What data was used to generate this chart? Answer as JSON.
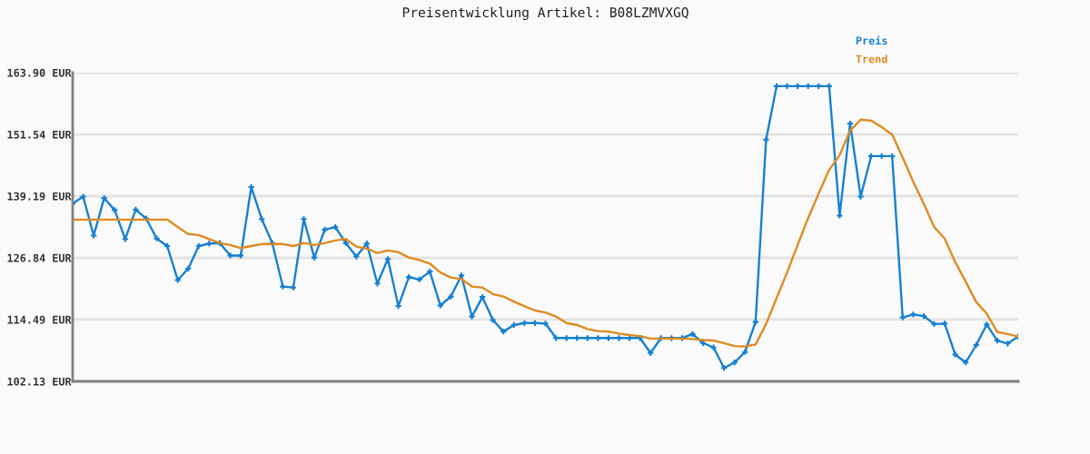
{
  "chart_data": {
    "type": "line",
    "title": "Preisentwicklung Artikel: B08LZMVXGQ",
    "categories": [
      null,
      null,
      null,
      null,
      null,
      null,
      null,
      null,
      null,
      null,
      null,
      null,
      null,
      null,
      null,
      null,
      null,
      null,
      null,
      null,
      null,
      null,
      null,
      null,
      null,
      null,
      null,
      null,
      null,
      null,
      null,
      null,
      null,
      null,
      null,
      null,
      null,
      null,
      null,
      null,
      null,
      null,
      null,
      null,
      null,
      null,
      null,
      null,
      null,
      null,
      null,
      null,
      null,
      null,
      null,
      null,
      null,
      null,
      null,
      null,
      null,
      null,
      null,
      null,
      null,
      null,
      null,
      null,
      null,
      null,
      null,
      null,
      null,
      null,
      null,
      null,
      null,
      null,
      null,
      null,
      null,
      null,
      null,
      null,
      null,
      null,
      null,
      null,
      null,
      null,
      null
    ],
    "series": [
      {
        "name": "Preis",
        "color": "#1580d0",
        "values": [
          137.7,
          139.1,
          131.3,
          138.8,
          136.4,
          130.6,
          136.5,
          134.7,
          130.7,
          129.2,
          122.4,
          124.7,
          129.2,
          129.7,
          129.8,
          127.3,
          127.3,
          141.0,
          134.6,
          129.8,
          121.1,
          120.9,
          134.6,
          126.9,
          132.5,
          133.0,
          129.8,
          127.1,
          129.7,
          121.7,
          126.6,
          117.2,
          123.0,
          122.5,
          124.1,
          117.3,
          119.1,
          123.3,
          115.1,
          119.0,
          114.4,
          112.1,
          113.4,
          113.8,
          113.8,
          113.7,
          110.8,
          110.8,
          110.8,
          110.8,
          110.8,
          110.8,
          110.8,
          110.8,
          110.8,
          107.8,
          110.8,
          110.8,
          110.8,
          111.6,
          109.8,
          108.9,
          104.8,
          105.9,
          108.0,
          114.0,
          150.5,
          161.2,
          161.2,
          161.2,
          161.2,
          161.2,
          161.2,
          135.3,
          153.7,
          139.1,
          147.2,
          147.2,
          147.2,
          114.9,
          115.5,
          115.2,
          113.6,
          113.7,
          107.5,
          105.9,
          109.4,
          113.5,
          110.3,
          109.7,
          111.1
        ]
      },
      {
        "name": "Trend",
        "color": "#e08a1e",
        "marker": "none",
        "values": [
          134.5,
          134.5,
          134.5,
          134.5,
          134.5,
          134.5,
          134.5,
          134.5,
          134.5,
          134.5,
          133.0,
          131.6,
          131.4,
          130.6,
          129.8,
          129.4,
          128.8,
          129.2,
          129.6,
          129.6,
          129.6,
          129.2,
          129.8,
          129.4,
          129.8,
          130.3,
          130.6,
          129.1,
          128.7,
          127.8,
          128.3,
          128.0,
          126.9,
          126.4,
          125.7,
          123.9,
          122.9,
          122.6,
          121.1,
          120.9,
          119.6,
          119.1,
          118.1,
          117.2,
          116.3,
          115.9,
          115.1,
          113.8,
          113.4,
          112.6,
          112.2,
          112.1,
          111.7,
          111.4,
          111.2,
          110.7,
          110.7,
          110.7,
          110.7,
          110.6,
          110.4,
          110.3,
          109.8,
          109.2,
          109.1,
          109.5,
          113.6,
          118.8,
          123.9,
          129.4,
          134.8,
          139.7,
          144.4,
          147.4,
          152.3,
          154.5,
          154.3,
          153.0,
          151.5,
          146.9,
          142.1,
          137.7,
          133.0,
          130.7,
          126.0,
          122.1,
          118.0,
          115.7,
          112.0,
          111.6,
          111.1
        ]
      }
    ],
    "ylim": [
      102.13,
      163.9
    ],
    "yticks": [
      {
        "value": 102.13,
        "label": "102.13 EUR"
      },
      {
        "value": 114.49,
        "label": "114.49 EUR"
      },
      {
        "value": 126.84,
        "label": "126.84 EUR"
      },
      {
        "value": 139.19,
        "label": "139.19 EUR"
      },
      {
        "value": 151.54,
        "label": "151.54 EUR"
      },
      {
        "value": 163.9,
        "label": "163.90 EUR"
      }
    ],
    "grid": "y",
    "legend": "top right",
    "tick_labels": "y",
    "marker": "cross"
  }
}
